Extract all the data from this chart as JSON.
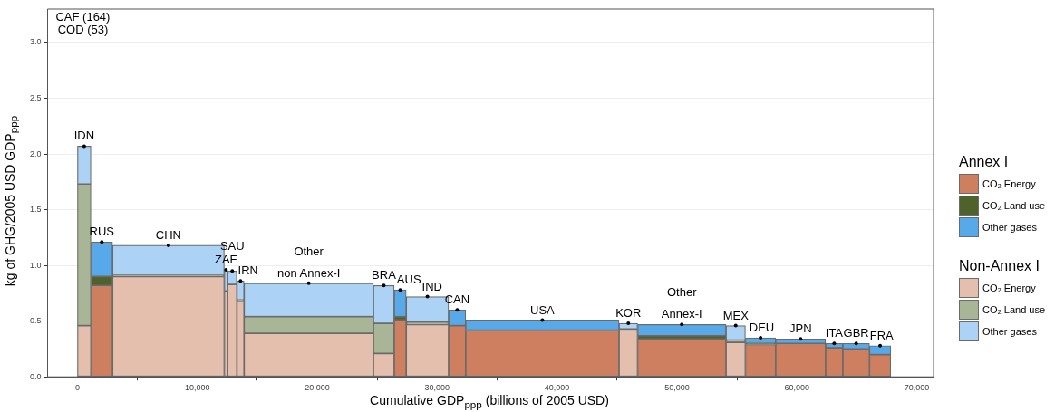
{
  "chart_data": {
    "type": "bar",
    "stacked": true,
    "xlabel": "Cumulative GDP$_{ppp}$ (billions of 2005 USD)",
    "ylabel": "kg of GHG/2005 USD GDP$_{ppp}$",
    "legend_title": [
      "Annex I",
      "Non-Annex I"
    ],
    "x": [
      565,
      2030,
      7590,
      12385,
      12910,
      13600,
      19290,
      25550,
      26920,
      29190,
      31670,
      38775,
      45945,
      50405,
      54900,
      56970,
      60315,
      63115,
      64945,
      66945
    ],
    "series": [
      {
        "name": "CO₂ Energy",
        "color": "#cd7f60",
        "values": [
          null,
          0.82,
          null,
          null,
          null,
          null,
          null,
          null,
          0.51,
          null,
          0.46,
          0.42,
          null,
          0.34,
          null,
          0.29,
          0.3,
          0.26,
          0.25,
          0.2
        ]
      },
      {
        "name": "CO₂ Land use",
        "color": "#4f622c",
        "values": [
          null,
          0.08,
          null,
          null,
          null,
          null,
          null,
          null,
          0.03,
          null,
          null,
          null,
          null,
          0.03,
          null,
          0.01,
          null,
          null,
          null,
          null
        ]
      },
      {
        "name": "Other gases",
        "color": "#58a9ea",
        "values": [
          null,
          0.31,
          null,
          null,
          null,
          null,
          null,
          null,
          0.24,
          null,
          0.14,
          0.09,
          null,
          0.1,
          null,
          0.05,
          0.04,
          0.04,
          0.05,
          0.08
        ]
      },
      {
        "name": "CO₂ Energy",
        "color": "#e5bfad",
        "values": [
          0.46,
          null,
          0.9,
          0.77,
          0.83,
          0.68,
          0.39,
          0.21,
          null,
          0.47,
          null,
          null,
          0.43,
          null,
          0.31,
          null,
          null,
          null,
          null,
          null
        ]
      },
      {
        "name": "CO₂ Land use",
        "color": "#a8b596",
        "values": [
          1.27,
          null,
          0.01,
          null,
          null,
          0.01,
          0.15,
          0.27,
          null,
          0.02,
          null,
          null,
          null,
          null,
          0.02,
          null,
          null,
          null,
          null,
          null
        ]
      },
      {
        "name": "Other gases",
        "color": "#acd3f5",
        "values": [
          0.34,
          null,
          0.27,
          0.19,
          0.12,
          0.17,
          0.3,
          0.34,
          null,
          0.23,
          null,
          null,
          0.05,
          null,
          0.13,
          null,
          null,
          null,
          null,
          null
        ]
      }
    ],
    "annotations": [
      "CAF (164)",
      "COD (53)",
      {
        "text": "IDN",
        "x": 565,
        "y": 2.07
      },
      {
        "text": "RUS",
        "x": 2030,
        "y": 1.21
      },
      {
        "text": "CHN",
        "x": 7590,
        "y": 1.18
      },
      {
        "text": "ZAF",
        "x": 12385,
        "y": 0.96
      },
      {
        "text": "SAU",
        "x": 12910,
        "y": 0.95
      },
      {
        "text": "IRN",
        "x": 13600,
        "y": 0.86
      },
      {
        "text": "Other\nnon Annex-I",
        "x": 19290,
        "y": 0.84
      },
      {
        "text": "BRA",
        "x": 25550,
        "y": 0.82
      },
      {
        "text": "AUS",
        "x": 26920,
        "y": 0.78
      },
      {
        "text": "IND",
        "x": 29190,
        "y": 0.72
      },
      {
        "text": "CAN",
        "x": 31670,
        "y": 0.6
      },
      {
        "text": "USA",
        "x": 38775,
        "y": 0.51
      },
      {
        "text": "KOR",
        "x": 45945,
        "y": 0.48
      },
      {
        "text": "Other\nAnnex-I",
        "x": 50405,
        "y": 0.47
      },
      {
        "text": "MEX",
        "x": 54900,
        "y": 0.46
      },
      {
        "text": "DEU",
        "x": 56970,
        "y": 0.35
      },
      {
        "text": "JPN",
        "x": 60315,
        "y": 0.34
      },
      {
        "text": "ITA",
        "x": 63115,
        "y": 0.3
      },
      {
        "text": "GBR",
        "x": 64945,
        "y": 0.3
      },
      {
        "text": "FRA",
        "x": 66945,
        "y": 0.28
      }
    ],
    "xlim": [
      -2490,
      71400
    ],
    "ylim": [
      0,
      3.3
    ],
    "xticks": [
      0,
      {
        "value": 10000,
        "label": "10,000"
      },
      {
        "value": 20000,
        "label": "20,000"
      },
      {
        "value": 30000,
        "label": "30,000"
      },
      {
        "value": 40000,
        "label": "40,000"
      },
      {
        "value": 50000,
        "label": "50,000"
      },
      {
        "value": 60000,
        "label": "60,000"
      },
      {
        "value": 70000,
        "label": "70,000"
      }
    ],
    "yticks": [
      {
        "value": 0,
        "label": "0.0"
      },
      {
        "value": 0.5,
        "label": "0.5"
      },
      {
        "value": 1,
        "label": "1.0"
      },
      {
        "value": 1.5,
        "label": "1.5"
      },
      {
        "value": 2,
        "label": "2.0"
      },
      {
        "value": 2.5,
        "label": "2.5"
      },
      {
        "value": 3,
        "label": "3.0"
      }
    ],
    "grid": "y",
    "legend": "right"
  }
}
